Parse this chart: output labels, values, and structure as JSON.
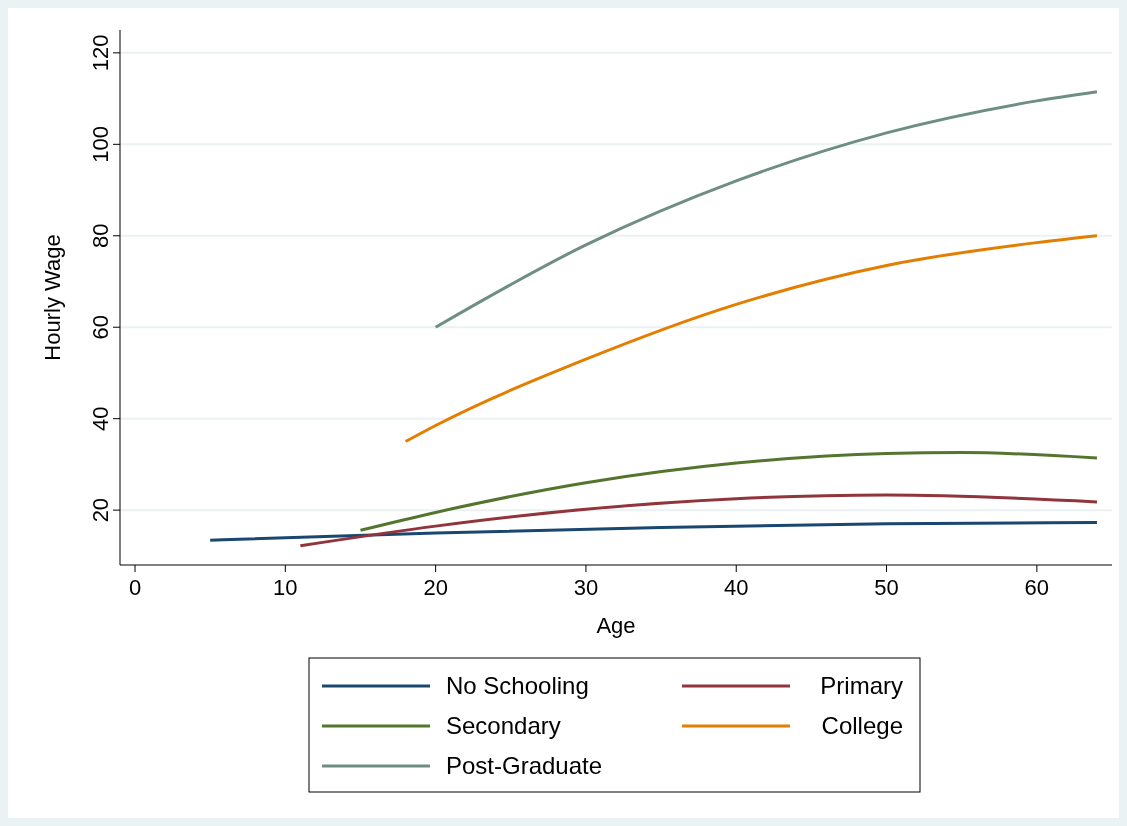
{
  "chart_data": {
    "type": "line",
    "xlabel": "Age",
    "ylabel": "Hourly Wage",
    "xlim": [
      -1,
      65
    ],
    "ylim": [
      8,
      125
    ],
    "xticks": [
      0,
      10,
      20,
      30,
      40,
      50,
      60
    ],
    "yticks": [
      20,
      40,
      60,
      80,
      100,
      120
    ],
    "grid": "y",
    "legend": "bottom",
    "marker": "none",
    "line_style": "solid",
    "series": [
      {
        "name": "No Schooling",
        "color": "#1a476f",
        "x": [
          5,
          20,
          35,
          50,
          64
        ],
        "values": [
          13.4,
          15.0,
          16.2,
          17.0,
          17.3
        ]
      },
      {
        "name": "Primary",
        "color": "#90353b",
        "x": [
          11,
          20,
          30,
          40,
          50,
          64
        ],
        "values": [
          12.2,
          16.5,
          20.2,
          22.5,
          23.3,
          21.8
        ]
      },
      {
        "name": "Secondary",
        "color": "#55752f",
        "x": [
          15,
          20,
          30,
          40,
          50,
          55,
          64
        ],
        "values": [
          15.6,
          19.5,
          26,
          30.3,
          32.4,
          32.6,
          31.4
        ]
      },
      {
        "name": "College",
        "color": "#e37e00",
        "x": [
          18,
          20,
          30,
          40,
          50,
          60,
          64
        ],
        "values": [
          35,
          38.5,
          53,
          65,
          73.5,
          78.5,
          80
        ]
      },
      {
        "name": "Post-Graduate",
        "color": "#6e8e84",
        "x": [
          20,
          30,
          40,
          50,
          60,
          64
        ],
        "values": [
          60,
          78,
          92,
          102.5,
          109.5,
          111.5
        ]
      }
    ]
  }
}
